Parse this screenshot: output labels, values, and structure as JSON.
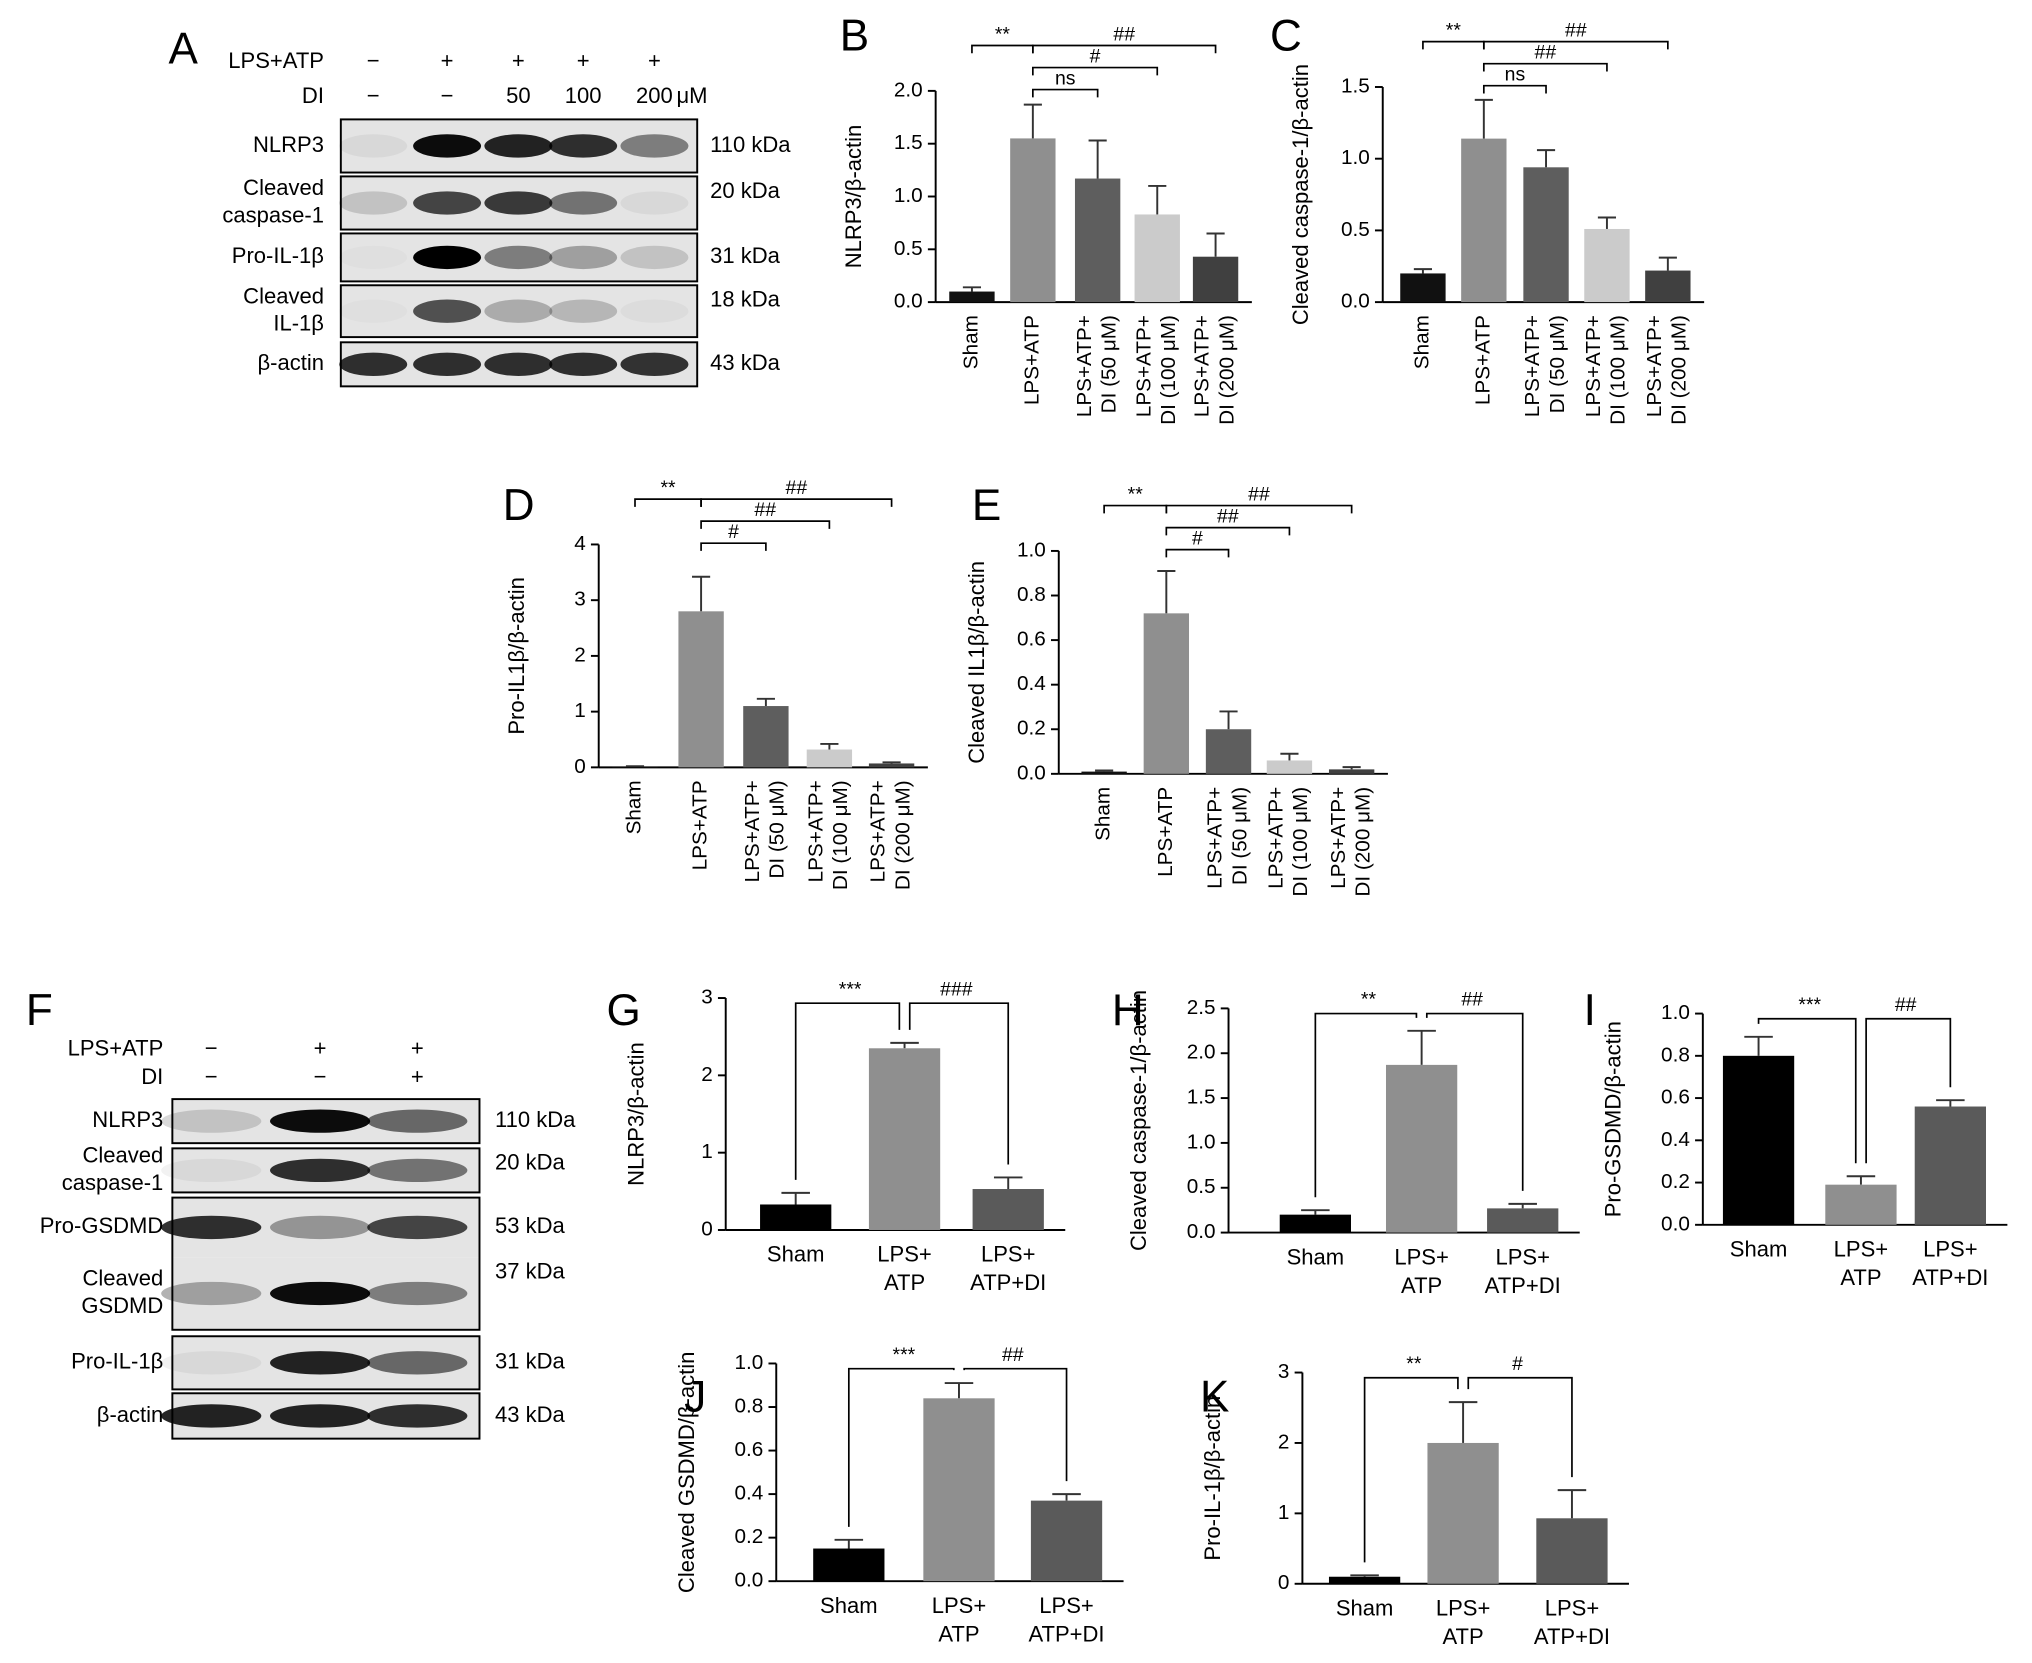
{
  "chart_data": [
    {
      "type": "bar",
      "panel": "B",
      "ylabel": "NLRP3/β-actin",
      "categories": [
        [
          "Sham"
        ],
        [
          "LPS+ATP"
        ],
        [
          "LPS+ATP+",
          "DI (50 μM)"
        ],
        [
          "LPS+ATP+",
          "DI (100 μM)"
        ],
        [
          "LPS+ATP+",
          "DI (200 μM)"
        ]
      ],
      "values": [
        0.1,
        1.55,
        1.17,
        0.83,
        0.43
      ],
      "errors": [
        0.04,
        0.32,
        0.36,
        0.27,
        0.22
      ],
      "colors": [
        "#111111",
        "#8f8f8f",
        "#5e5e5e",
        "#cbcbcb",
        "#404040"
      ],
      "ylim": [
        0,
        2
      ],
      "yticks": [
        {
          "value": 0,
          "label": "0.0"
        },
        0.5,
        {
          "value": 1,
          "label": "1.0"
        },
        1.5,
        {
          "value": 2,
          "label": "2.0"
        }
      ],
      "significance": [
        "**",
        "##",
        "#",
        "ns"
      ]
    },
    {
      "type": "bar",
      "panel": "C",
      "ylabel": "Cleaved caspase-1/β-actin",
      "categories": [
        [
          "Sham"
        ],
        [
          "LPS+ATP"
        ],
        [
          "LPS+ATP+",
          "DI (50 μM)"
        ],
        [
          "LPS+ATP+",
          "DI (100 μM)"
        ],
        [
          "LPS+ATP+",
          "DI (200 μM)"
        ]
      ],
      "values": [
        0.2,
        1.14,
        0.94,
        0.51,
        0.22
      ],
      "errors": [
        0.03,
        0.27,
        0.12,
        0.08,
        0.09
      ],
      "colors": [
        "#111111",
        "#8f8f8f",
        "#5e5e5e",
        "#cbcbcb",
        "#404040"
      ],
      "ylim": [
        0,
        1.5
      ],
      "yticks": [
        {
          "value": 0,
          "label": "0.0"
        },
        0.5,
        {
          "value": 1,
          "label": "1.0"
        },
        1.5
      ],
      "significance": [
        "**",
        "##",
        "##",
        "ns"
      ]
    },
    {
      "type": "bar",
      "panel": "D",
      "ylabel": "Pro-IL1β/β-actin",
      "categories": [
        [
          "Sham"
        ],
        [
          "LPS+ATP"
        ],
        [
          "LPS+ATP+",
          "DI (50 μM)"
        ],
        [
          "LPS+ATP+",
          "DI (100 μM)"
        ],
        [
          "LPS+ATP+",
          "DI (200 μM)"
        ]
      ],
      "values": [
        0.01,
        2.8,
        1.1,
        0.32,
        0.07
      ],
      "errors": [
        0.01,
        0.62,
        0.13,
        0.1,
        0.02
      ],
      "colors": [
        "#111111",
        "#8f8f8f",
        "#5e5e5e",
        "#cbcbcb",
        "#404040"
      ],
      "ylim": [
        0,
        4
      ],
      "yticks": [
        0,
        1,
        2,
        3,
        4
      ],
      "significance": [
        "**",
        "##",
        "##",
        "#"
      ]
    },
    {
      "type": "bar",
      "panel": "E",
      "ylabel": "Cleaved IL1β/β-actin",
      "categories": [
        [
          "Sham"
        ],
        [
          "LPS+ATP"
        ],
        [
          "LPS+ATP+",
          "DI (50 μM)"
        ],
        [
          "LPS+ATP+",
          "DI (100 μM)"
        ],
        [
          "LPS+ATP+",
          "DI (200 μM)"
        ]
      ],
      "values": [
        0.01,
        0.72,
        0.2,
        0.06,
        0.02
      ],
      "errors": [
        0.005,
        0.19,
        0.08,
        0.03,
        0.01
      ],
      "colors": [
        "#111111",
        "#8f8f8f",
        "#5e5e5e",
        "#cbcbcb",
        "#404040"
      ],
      "ylim": [
        0,
        1
      ],
      "yticks": [
        {
          "value": 0,
          "label": "0.0"
        },
        0.2,
        0.4,
        0.6,
        0.8,
        {
          "value": 1,
          "label": "1.0"
        }
      ],
      "significance": [
        "**",
        "##",
        "##",
        "#"
      ]
    },
    {
      "type": "bar",
      "panel": "G",
      "ylabel": "NLRP3/β-actin",
      "categories": [
        [
          "Sham"
        ],
        [
          "LPS+",
          "ATP"
        ],
        [
          "LPS+",
          "ATP+DI"
        ]
      ],
      "values": [
        0.33,
        2.35,
        0.53
      ],
      "errors": [
        0.15,
        0.07,
        0.15
      ],
      "colors": [
        "#000000",
        "#8f8f8f",
        "#5a5a5a"
      ],
      "ylim": [
        0,
        3
      ],
      "yticks": [
        0,
        1,
        2,
        3
      ],
      "significance": [
        "***",
        "###"
      ]
    },
    {
      "type": "bar",
      "panel": "H",
      "ylabel": "Cleaved caspase-1/β-actin",
      "categories": [
        [
          "Sham"
        ],
        [
          "LPS+",
          "ATP"
        ],
        [
          "LPS+",
          "ATP+DI"
        ]
      ],
      "values": [
        0.2,
        1.87,
        0.27
      ],
      "errors": [
        0.05,
        0.38,
        0.05
      ],
      "colors": [
        "#000000",
        "#8f8f8f",
        "#5a5a5a"
      ],
      "ylim": [
        0,
        2.5
      ],
      "yticks": [
        {
          "value": 0,
          "label": "0.0"
        },
        0.5,
        {
          "value": 1,
          "label": "1.0"
        },
        1.5,
        {
          "value": 2,
          "label": "2.0"
        },
        2.5
      ],
      "significance": [
        "**",
        "##"
      ]
    },
    {
      "type": "bar",
      "panel": "I",
      "ylabel": "Pro-GSDMD/β-actin",
      "categories": [
        [
          "Sham"
        ],
        [
          "LPS+",
          "ATP"
        ],
        [
          "LPS+",
          "ATP+DI"
        ]
      ],
      "values": [
        0.8,
        0.19,
        0.56
      ],
      "errors": [
        0.09,
        0.04,
        0.03
      ],
      "colors": [
        "#000000",
        "#8f8f8f",
        "#5a5a5a"
      ],
      "ylim": [
        0,
        1
      ],
      "yticks": [
        {
          "value": 0,
          "label": "0.0"
        },
        0.2,
        0.4,
        0.6,
        0.8,
        {
          "value": 1,
          "label": "1.0"
        }
      ],
      "significance": [
        "***",
        "##"
      ]
    },
    {
      "type": "bar",
      "panel": "J",
      "ylabel": "Cleaved GSDMD/β-actin",
      "categories": [
        [
          "Sham"
        ],
        [
          "LPS+",
          "ATP"
        ],
        [
          "LPS+",
          "ATP+DI"
        ]
      ],
      "values": [
        0.15,
        0.84,
        0.37
      ],
      "errors": [
        0.04,
        0.07,
        0.03
      ],
      "colors": [
        "#000000",
        "#8f8f8f",
        "#5a5a5a"
      ],
      "ylim": [
        0,
        1
      ],
      "yticks": [
        {
          "value": 0,
          "label": "0.0"
        },
        0.2,
        0.4,
        0.6,
        0.8,
        {
          "value": 1,
          "label": "1.0"
        }
      ],
      "significance": [
        "***",
        "##"
      ]
    },
    {
      "type": "bar",
      "panel": "K",
      "ylabel": "Pro-IL-1β/β-actin",
      "categories": [
        [
          "Sham"
        ],
        [
          "LPS+",
          "ATP"
        ],
        [
          "LPS+",
          "ATP+DI"
        ]
      ],
      "values": [
        0.1,
        2.0,
        0.93
      ],
      "errors": [
        0.02,
        0.58,
        0.4
      ],
      "colors": [
        "#000000",
        "#8f8f8f",
        "#5a5a5a"
      ],
      "ylim": [
        0,
        3
      ],
      "yticks": [
        0,
        1,
        2,
        3
      ],
      "significance": [
        "**",
        "#"
      ]
    }
  ],
  "blots": [
    {
      "panel": "A",
      "conditions": [
        {
          "label": "LPS+ATP",
          "marks": [
            "−",
            "+",
            "+",
            "+",
            "+"
          ]
        },
        {
          "label": "DI",
          "marks": [
            "−",
            "−",
            "50",
            "100",
            "200"
          ]
        }
      ],
      "unit": "μM",
      "rows": [
        {
          "label": [
            "NLRP3"
          ],
          "kda": "110 kDa"
        },
        {
          "label": [
            "Cleaved",
            "caspase-1"
          ],
          "kda": "20 kDa"
        },
        {
          "label": [
            "Pro-IL-1β"
          ],
          "kda": "31 kDa"
        },
        {
          "label": [
            "Cleaved",
            "IL-1β"
          ],
          "kda": "18 kDa"
        },
        {
          "label": [
            "β-actin"
          ],
          "kda": "43 kDa"
        }
      ]
    },
    {
      "panel": "F",
      "conditions": [
        {
          "label": "LPS+ATP",
          "marks": [
            "−",
            "+",
            "+"
          ]
        },
        {
          "label": "DI",
          "marks": [
            "−",
            "−",
            "+"
          ]
        }
      ],
      "rows": [
        {
          "label": [
            "NLRP3"
          ],
          "kda": "110 kDa"
        },
        {
          "label": [
            "Cleaved",
            "caspase-1"
          ],
          "kda": "20 kDa"
        },
        {
          "label": [
            "Pro-GSDMD"
          ],
          "kda": "53 kDa"
        },
        {
          "label": [
            "Cleaved",
            "GSDMD"
          ],
          "kda": "37 kDa"
        },
        {
          "label": [
            "Pro-IL-1β"
          ],
          "kda": "31 kDa"
        },
        {
          "label": [
            "β-actin"
          ],
          "kda": "43 kDa"
        }
      ]
    }
  ]
}
